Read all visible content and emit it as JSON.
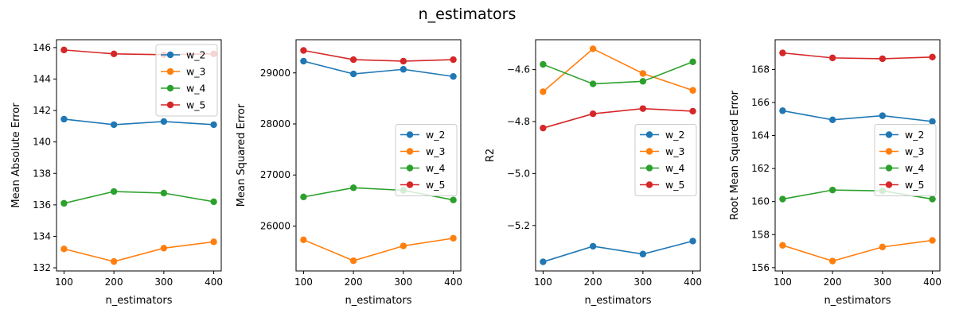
{
  "figure": {
    "title": "n_estimators"
  },
  "colors": {
    "w_2": "#1f77b4",
    "w_3": "#ff7f0e",
    "w_4": "#2ca02c",
    "w_5": "#d62728"
  },
  "chart_data": [
    {
      "type": "line",
      "xlabel": "n_estimators",
      "ylabel": "Mean Absolute Error",
      "x": [
        100,
        200,
        300,
        400
      ],
      "xticks": [
        "100",
        "200",
        "300",
        "400"
      ],
      "yticks": [
        132,
        134,
        136,
        138,
        140,
        142,
        144,
        146
      ],
      "ytick_labels": [
        "132",
        "134",
        "136",
        "138",
        "140",
        "142",
        "144",
        "146"
      ],
      "ylim": [
        131.8,
        146.5
      ],
      "legend": "upper-right",
      "series": [
        {
          "name": "w_2",
          "values": [
            141.45,
            141.1,
            141.3,
            141.1
          ]
        },
        {
          "name": "w_3",
          "values": [
            133.2,
            132.4,
            133.25,
            133.65
          ]
        },
        {
          "name": "w_4",
          "values": [
            136.1,
            136.85,
            136.75,
            136.2
          ]
        },
        {
          "name": "w_5",
          "values": [
            145.85,
            145.6,
            145.55,
            145.6
          ]
        }
      ]
    },
    {
      "type": "line",
      "xlabel": "n_estimators",
      "ylabel": "Mean Squared Error",
      "x": [
        100,
        200,
        300,
        400
      ],
      "xticks": [
        "100",
        "200",
        "300",
        "400"
      ],
      "yticks": [
        26000,
        27000,
        28000,
        29000
      ],
      "ytick_labels": [
        "26000",
        "27000",
        "28000",
        "29000"
      ],
      "ylim": [
        25120,
        29650
      ],
      "legend": "center-right",
      "series": [
        {
          "name": "w_2",
          "values": [
            29230,
            28980,
            29070,
            28930
          ]
        },
        {
          "name": "w_3",
          "values": [
            25730,
            25320,
            25610,
            25760
          ]
        },
        {
          "name": "w_4",
          "values": [
            26570,
            26750,
            26700,
            26510
          ]
        },
        {
          "name": "w_5",
          "values": [
            29440,
            29260,
            29230,
            29260
          ]
        }
      ]
    },
    {
      "type": "line",
      "xlabel": "n_estimators",
      "ylabel": "R2",
      "x": [
        100,
        200,
        300,
        400
      ],
      "xticks": [
        "100",
        "200",
        "300",
        "400"
      ],
      "yticks": [
        -5.2,
        -5.0,
        -4.8,
        -4.6
      ],
      "ytick_labels": [
        "−5.2",
        "−5.0",
        "−4.8",
        "−4.6"
      ],
      "ylim": [
        -5.375,
        -4.485
      ],
      "legend": "center-right",
      "series": [
        {
          "name": "w_2",
          "values": [
            -5.34,
            -5.28,
            -5.31,
            -5.26
          ]
        },
        {
          "name": "w_3",
          "values": [
            -4.685,
            -4.52,
            -4.615,
            -4.68
          ]
        },
        {
          "name": "w_4",
          "values": [
            -4.58,
            -4.655,
            -4.645,
            -4.57
          ]
        },
        {
          "name": "w_5",
          "values": [
            -4.825,
            -4.77,
            -4.75,
            -4.76
          ]
        }
      ]
    },
    {
      "type": "line",
      "xlabel": "n_estimators",
      "ylabel": "Root Mean Squared Error",
      "x": [
        100,
        200,
        300,
        400
      ],
      "xticks": [
        "100",
        "200",
        "300",
        "400"
      ],
      "yticks": [
        156,
        158,
        160,
        162,
        164,
        166,
        168
      ],
      "ytick_labels": [
        "156",
        "158",
        "160",
        "162",
        "164",
        "166",
        "168"
      ],
      "ylim": [
        155.8,
        169.8
      ],
      "legend": "center-right",
      "series": [
        {
          "name": "w_2",
          "values": [
            165.5,
            164.95,
            165.2,
            164.85
          ]
        },
        {
          "name": "w_3",
          "values": [
            157.35,
            156.4,
            157.25,
            157.65
          ]
        },
        {
          "name": "w_4",
          "values": [
            160.15,
            160.7,
            160.65,
            160.15
          ]
        },
        {
          "name": "w_5",
          "values": [
            169.0,
            168.7,
            168.65,
            168.75
          ]
        }
      ]
    }
  ]
}
